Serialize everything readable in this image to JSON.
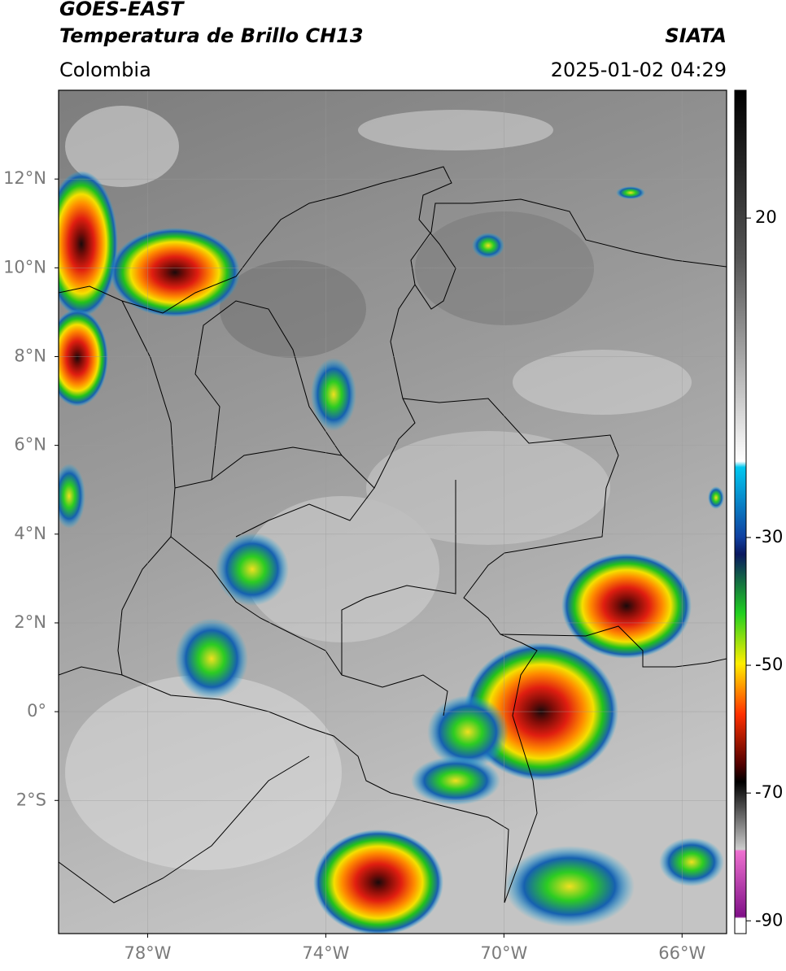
{
  "header": {
    "title": "GOES-EAST",
    "subtitle": "Temperatura de Brillo CH13",
    "source": "SIATA",
    "region": "Colombia",
    "timestamp": "2025-01-02 04:29"
  },
  "map": {
    "xlim": [
      -80,
      -65
    ],
    "ylim": [
      -5,
      14
    ],
    "xticks": [
      {
        "value": -78,
        "label": "78°W"
      },
      {
        "value": -74,
        "label": "74°W"
      },
      {
        "value": -70,
        "label": "70°W"
      },
      {
        "value": -66,
        "label": "66°W"
      }
    ],
    "yticks": [
      {
        "value": 12,
        "label": "12°N"
      },
      {
        "value": 10,
        "label": "10°N"
      },
      {
        "value": 8,
        "label": "8°N"
      },
      {
        "value": 6,
        "label": "6°N"
      },
      {
        "value": 4,
        "label": "4°N"
      },
      {
        "value": 2,
        "label": "2°N"
      },
      {
        "value": 0,
        "label": "0°"
      },
      {
        "value": -2,
        "label": "2°S"
      }
    ],
    "grid": true
  },
  "colorbar": {
    "lim": [
      -92,
      40
    ],
    "ticks": [
      20,
      -30,
      -50,
      -70,
      -90
    ]
  }
}
